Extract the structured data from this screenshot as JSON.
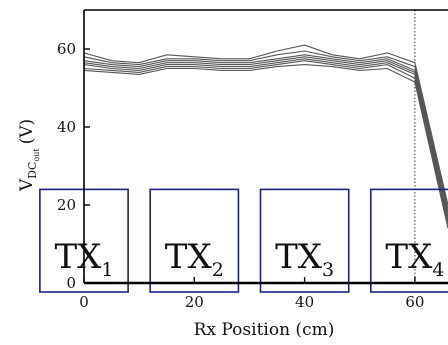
{
  "chart_data": {
    "type": "line",
    "xlabel": "Rx Position (cm)",
    "ylabel_main": "V",
    "ylabel_sub": "DC",
    "ylabel_subsub": "out",
    "ylabel_unit": "(V)",
    "xlim": [
      0,
      66
    ],
    "ylim": [
      0,
      70
    ],
    "x_ticks": [
      0,
      20,
      40,
      60
    ],
    "y_ticks": [
      0,
      20,
      40,
      60
    ],
    "vline_x": 60,
    "x": [
      0,
      5,
      10,
      15,
      20,
      25,
      30,
      35,
      40,
      45,
      50,
      55,
      60,
      66
    ],
    "series": [
      {
        "values": [
          59.0,
          57.0,
          56.5,
          58.5,
          58.0,
          57.5,
          57.5,
          59.5,
          61.0,
          58.5,
          57.5,
          59.0,
          56.5,
          20.0
        ]
      },
      {
        "values": [
          58.0,
          56.5,
          56.0,
          57.5,
          57.5,
          57.0,
          57.0,
          58.5,
          59.5,
          58.0,
          57.0,
          58.0,
          55.5,
          19.0
        ]
      },
      {
        "values": [
          57.0,
          56.0,
          55.5,
          57.0,
          57.0,
          56.5,
          56.5,
          57.5,
          58.5,
          57.5,
          56.5,
          57.5,
          54.5,
          18.0
        ]
      },
      {
        "values": [
          56.5,
          55.5,
          55.0,
          56.5,
          56.5,
          56.0,
          56.0,
          57.0,
          58.0,
          57.0,
          56.0,
          57.0,
          54.0,
          17.0
        ]
      },
      {
        "values": [
          56.0,
          55.0,
          54.5,
          56.0,
          56.0,
          55.5,
          55.5,
          56.5,
          57.5,
          56.5,
          55.5,
          56.5,
          53.5,
          16.0
        ]
      },
      {
        "values": [
          55.0,
          54.5,
          54.0,
          55.5,
          55.5,
          55.0,
          55.0,
          56.0,
          57.0,
          56.0,
          55.0,
          56.0,
          52.5,
          15.0
        ]
      },
      {
        "values": [
          54.5,
          54.0,
          53.5,
          55.0,
          55.0,
          54.5,
          54.5,
          55.5,
          56.0,
          55.5,
          54.5,
          55.0,
          51.5,
          14.0
        ]
      }
    ],
    "tx_boxes": [
      {
        "label": "TX",
        "sub": "1",
        "x_start": -8,
        "x_end": 8,
        "y_top": 24
      },
      {
        "label": "TX",
        "sub": "2",
        "x_start": 12,
        "x_end": 28,
        "y_top": 24
      },
      {
        "label": "TX",
        "sub": "3",
        "x_start": 32,
        "x_end": 48,
        "y_top": 24
      },
      {
        "label": "TX",
        "sub": "4",
        "x_start": 52,
        "x_end": 68,
        "y_top": 24
      }
    ],
    "grid": false,
    "legend": "none"
  }
}
